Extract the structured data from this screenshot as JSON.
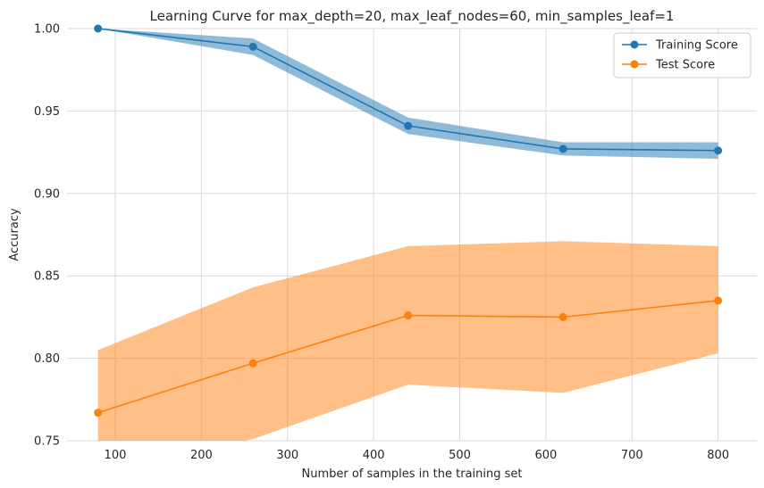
{
  "chart_data": {
    "type": "line",
    "title": "Learning Curve for max_depth=20, max_leaf_nodes=60, min_samples_leaf=1",
    "xlabel": "Number of samples in the training set",
    "ylabel": "Accuracy",
    "xlim": [
      44,
      845
    ],
    "ylim": [
      0.75,
      1.0
    ],
    "xticks": [
      100,
      200,
      300,
      400,
      500,
      600,
      700,
      800
    ],
    "yticks": [
      0.75,
      0.8,
      0.85,
      0.9,
      0.95,
      1.0
    ],
    "ytick_labels": [
      "0.75",
      "0.80",
      "0.85",
      "0.90",
      "0.95",
      "1.00"
    ],
    "grid": true,
    "legend_position": "top-right",
    "x": [
      80,
      260,
      440,
      620,
      800
    ],
    "series": [
      {
        "name": "Training Score",
        "color": "#1f77b4",
        "band_color": "#1f77b4",
        "values": [
          1.0,
          0.989,
          0.941,
          0.927,
          0.926
        ],
        "lower": [
          1.0,
          0.984,
          0.936,
          0.923,
          0.921
        ],
        "upper": [
          1.0,
          0.994,
          0.946,
          0.931,
          0.931
        ]
      },
      {
        "name": "Test Score",
        "color": "#ff7f0e",
        "band_color": "#ff7f0e",
        "values": [
          0.767,
          0.797,
          0.826,
          0.825,
          0.835
        ],
        "lower": [
          0.729,
          0.751,
          0.784,
          0.779,
          0.803
        ],
        "upper": [
          0.805,
          0.843,
          0.868,
          0.871,
          0.868
        ]
      }
    ]
  }
}
